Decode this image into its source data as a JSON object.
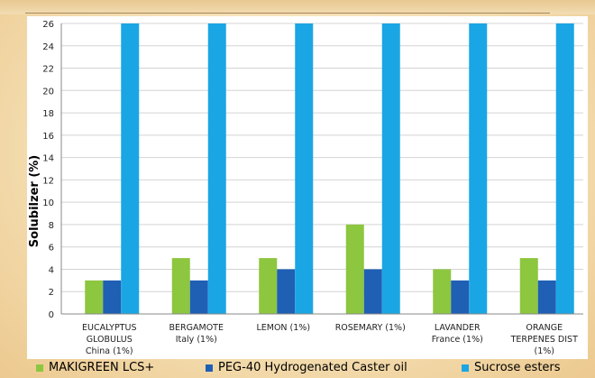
{
  "chart_data": {
    "type": "bar",
    "title": "",
    "xlabel": "",
    "ylabel": "Solubilzer (%)",
    "ylim": [
      0,
      26
    ],
    "yticks": [
      0,
      2,
      4,
      6,
      8,
      10,
      12,
      14,
      16,
      18,
      20,
      22,
      24,
      26
    ],
    "grid": true,
    "legend_position": "bottom",
    "categories": [
      [
        "EUCALYPTUS",
        "GLOBULUS",
        "China (1%)"
      ],
      [
        "BERGAMOTE",
        "Italy (1%)"
      ],
      [
        "LEMON (1%)"
      ],
      [
        "ROSEMARY (1%)"
      ],
      [
        "LAVANDER",
        "France (1%)"
      ],
      [
        "ORANGE",
        "TERPENES DIST",
        "(1%)"
      ]
    ],
    "series": [
      {
        "name": "MAKIGREEN LCS+",
        "color": "#8dc63f",
        "values": [
          3,
          5,
          5,
          8,
          4,
          5
        ]
      },
      {
        "name": "PEG-40 Hydrogenated Caster oil",
        "color": "#1f5fb4",
        "values": [
          3,
          3,
          4,
          4,
          3,
          3
        ]
      },
      {
        "name": "Sucrose esters",
        "color": "#1aa6e4",
        "values": [
          26,
          26,
          26,
          26,
          26,
          26
        ]
      }
    ]
  }
}
